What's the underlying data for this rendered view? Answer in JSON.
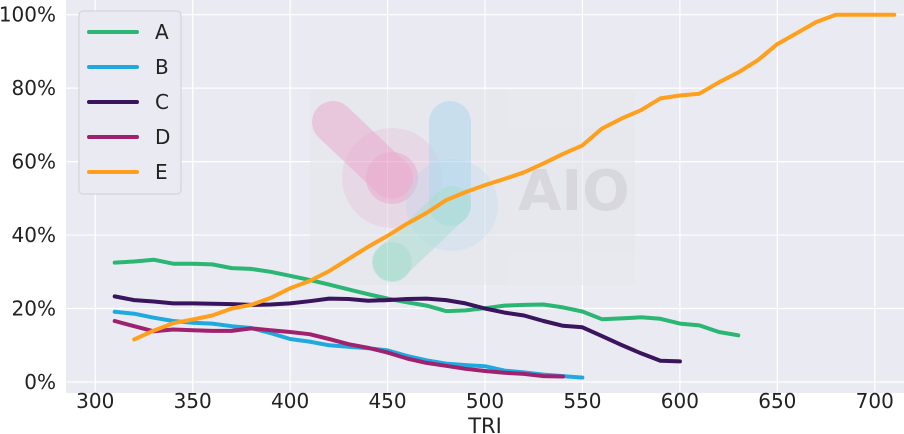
{
  "chart_data": {
    "type": "line",
    "xlabel": "TRI",
    "ylabel": "",
    "xlim": [
      285,
      715
    ],
    "ylim": [
      -3,
      104
    ],
    "x_ticks": [
      300,
      350,
      400,
      450,
      500,
      550,
      600,
      650,
      700
    ],
    "y_ticks": [
      0,
      20,
      40,
      60,
      80,
      100
    ],
    "y_tick_labels": [
      "0%",
      "20%",
      "40%",
      "60%",
      "80%",
      "100%"
    ],
    "grid": true,
    "legend_position": "top-left",
    "series": [
      {
        "name": "A",
        "color": "#2bb673",
        "x": [
          310,
          320,
          330,
          340,
          350,
          360,
          370,
          380,
          390,
          400,
          410,
          420,
          430,
          440,
          450,
          460,
          470,
          480,
          490,
          500,
          510,
          520,
          530,
          540,
          550,
          560,
          570,
          580,
          590,
          600,
          610,
          620,
          630
        ],
        "y": [
          32.5,
          32.8,
          33.3,
          32.2,
          32.2,
          32.0,
          31.0,
          30.8,
          30.0,
          28.9,
          27.8,
          26.5,
          25.2,
          23.9,
          22.7,
          21.7,
          20.8,
          19.3,
          19.5,
          20.1,
          20.8,
          21.0,
          21.1,
          20.3,
          19.2,
          17.1,
          17.3,
          17.6,
          17.2,
          15.9,
          15.4,
          13.6,
          12.7
        ]
      },
      {
        "name": "B",
        "color": "#1fa9df",
        "x": [
          310,
          320,
          330,
          340,
          350,
          360,
          370,
          380,
          390,
          400,
          410,
          420,
          430,
          440,
          450,
          460,
          470,
          480,
          490,
          500,
          510,
          520,
          530,
          540,
          550
        ],
        "y": [
          19.1,
          18.6,
          17.5,
          16.6,
          16.1,
          15.9,
          15.2,
          14.7,
          13.3,
          11.7,
          11.0,
          10.0,
          9.6,
          9.2,
          8.6,
          7.1,
          5.9,
          5.0,
          4.6,
          4.3,
          3.1,
          2.6,
          2.0,
          1.6,
          1.2
        ]
      },
      {
        "name": "C",
        "color": "#3a145c",
        "x": [
          310,
          320,
          330,
          340,
          350,
          360,
          370,
          380,
          390,
          400,
          410,
          420,
          430,
          440,
          450,
          460,
          470,
          480,
          490,
          500,
          510,
          520,
          530,
          540,
          550,
          560,
          570,
          580,
          590,
          600
        ],
        "y": [
          23.3,
          22.3,
          21.9,
          21.4,
          21.4,
          21.3,
          21.2,
          21.0,
          21.1,
          21.4,
          22.0,
          22.7,
          22.6,
          22.1,
          22.3,
          22.6,
          22.7,
          22.3,
          21.4,
          20.0,
          18.9,
          18.1,
          16.6,
          15.3,
          14.9,
          12.5,
          10.1,
          7.8,
          5.8,
          5.6
        ]
      },
      {
        "name": "D",
        "color": "#a0226e",
        "x": [
          310,
          320,
          330,
          340,
          350,
          360,
          370,
          380,
          390,
          400,
          410,
          420,
          430,
          440,
          450,
          460,
          470,
          480,
          490,
          500,
          510,
          520,
          530,
          540
        ],
        "y": [
          16.6,
          15.2,
          13.8,
          14.3,
          14.1,
          13.9,
          13.9,
          14.6,
          14.1,
          13.6,
          13.0,
          11.7,
          10.3,
          9.3,
          8.0,
          6.4,
          5.2,
          4.4,
          3.6,
          3.0,
          2.5,
          2.2,
          1.6,
          1.5
        ]
      },
      {
        "name": "E",
        "color": "#ff9f1c",
        "x": [
          320,
          330,
          340,
          350,
          360,
          370,
          380,
          390,
          400,
          410,
          420,
          430,
          440,
          450,
          460,
          470,
          480,
          490,
          500,
          510,
          520,
          530,
          540,
          550,
          560,
          570,
          580,
          590,
          600,
          610,
          620,
          630,
          640,
          650,
          660,
          670,
          680,
          690,
          700,
          710
        ],
        "y": [
          11.6,
          14.0,
          16.0,
          17.0,
          18.1,
          20.0,
          21.0,
          22.9,
          25.5,
          27.5,
          30.2,
          33.5,
          36.8,
          39.8,
          43.1,
          46.0,
          49.5,
          51.7,
          53.6,
          55.3,
          57.1,
          59.5,
          62.1,
          64.4,
          69.0,
          71.7,
          74.0,
          77.2,
          78.0,
          78.5,
          81.6,
          84.3,
          87.6,
          92.0,
          95.0,
          98.0,
          100,
          100,
          100,
          100
        ]
      }
    ]
  },
  "watermark": {
    "text": "AIO",
    "colors": [
      "#e879b0",
      "#7fc8e8",
      "#6fd4b2"
    ]
  }
}
